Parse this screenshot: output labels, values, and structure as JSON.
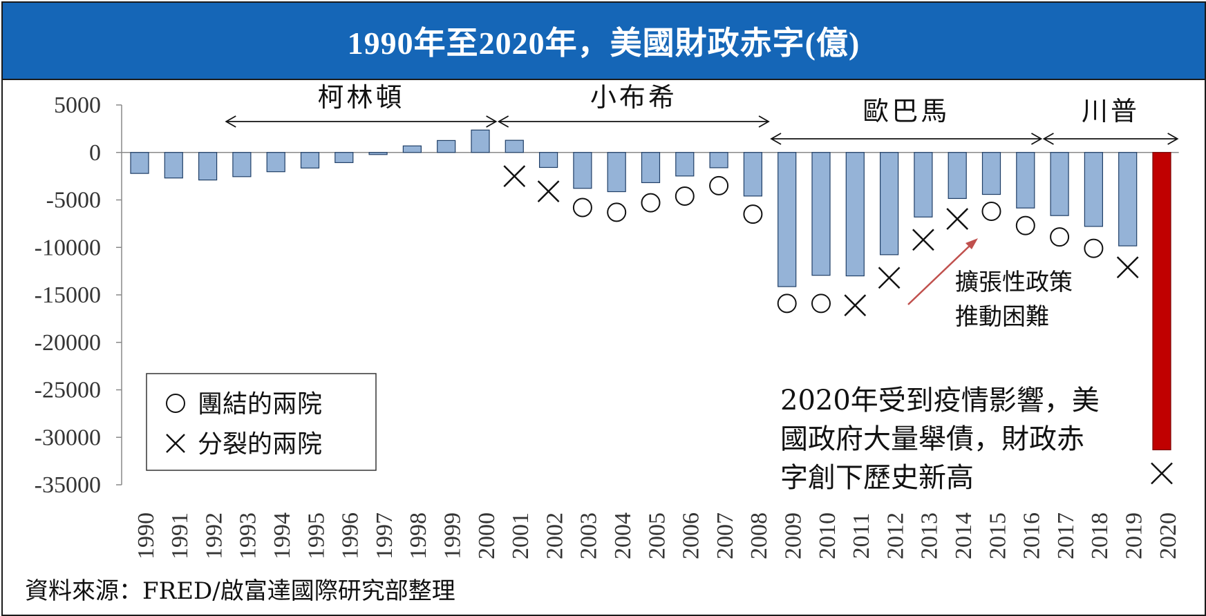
{
  "header": {
    "title": "1990年至2020年，美國財政赤字(億)"
  },
  "footer": {
    "source": "資料來源：FRED/啟富達國際研究部整理"
  },
  "colors": {
    "header_bg": "#1566b7",
    "bar_fill": "#95b3d7",
    "bar_edge": "#1f3e66",
    "highlight_bar": "#c00000",
    "arrow_red": "#c0504d"
  },
  "chart_data": {
    "type": "bar",
    "title": "1990年至2020年，美國財政赤字(億)",
    "xlabel": "",
    "ylabel": "",
    "ylim": [
      -35000,
      5000
    ],
    "yticks": [
      5000,
      0,
      -5000,
      -10000,
      -15000,
      -20000,
      -25000,
      -30000,
      -35000
    ],
    "ytick_labels": [
      "5000",
      "0",
      "-5000",
      "-10000",
      "-15000",
      "-20000",
      "-25000",
      "-30000",
      "-35000"
    ],
    "categories": [
      "1990",
      "1991",
      "1992",
      "1993",
      "1994",
      "1995",
      "1996",
      "1997",
      "1998",
      "1999",
      "2000",
      "2001",
      "2002",
      "2003",
      "2004",
      "2005",
      "2006",
      "2007",
      "2008",
      "2009",
      "2010",
      "2011",
      "2012",
      "2013",
      "2014",
      "2015",
      "2016",
      "2017",
      "2018",
      "2019",
      "2020"
    ],
    "values": [
      -2210,
      -2690,
      -2900,
      -2550,
      -2030,
      -1640,
      -1070,
      -220,
      690,
      1260,
      2360,
      1280,
      -1580,
      -3780,
      -4130,
      -3180,
      -2480,
      -1610,
      -4590,
      -14130,
      -12940,
      -13000,
      -10770,
      -6800,
      -4850,
      -4420,
      -5850,
      -6650,
      -7790,
      -9840,
      -31320
    ],
    "highlight_index": 30,
    "markers": [
      {
        "year": "2001",
        "type": "cross",
        "value": -2500
      },
      {
        "year": "2002",
        "type": "cross",
        "value": -4100
      },
      {
        "year": "2003",
        "type": "circle",
        "value": -5800
      },
      {
        "year": "2004",
        "type": "circle",
        "value": -6300
      },
      {
        "year": "2005",
        "type": "circle",
        "value": -5300
      },
      {
        "year": "2006",
        "type": "circle",
        "value": -4600
      },
      {
        "year": "2007",
        "type": "circle",
        "value": -3500
      },
      {
        "year": "2008",
        "type": "circle",
        "value": -6500
      },
      {
        "year": "2009",
        "type": "circle",
        "value": -15900
      },
      {
        "year": "2010",
        "type": "circle",
        "value": -15900
      },
      {
        "year": "2011",
        "type": "cross",
        "value": -16100
      },
      {
        "year": "2012",
        "type": "cross",
        "value": -13200
      },
      {
        "year": "2013",
        "type": "cross",
        "value": -9200
      },
      {
        "year": "2014",
        "type": "cross",
        "value": -7000
      },
      {
        "year": "2015",
        "type": "circle",
        "value": -6200
      },
      {
        "year": "2016",
        "type": "circle",
        "value": -7700
      },
      {
        "year": "2017",
        "type": "circle",
        "value": -8900
      },
      {
        "year": "2018",
        "type": "circle",
        "value": -10100
      },
      {
        "year": "2019",
        "type": "cross",
        "value": -12100
      },
      {
        "year": "2020",
        "type": "cross",
        "value": -33800
      }
    ],
    "presidents": [
      {
        "name": "柯林頓",
        "start": "1993",
        "end": "2000"
      },
      {
        "name": "小布希",
        "start": "2001",
        "end": "2008"
      },
      {
        "name": "歐巴馬",
        "start": "2009",
        "end": "2016"
      },
      {
        "name": "川普",
        "start": "2017",
        "end": "2020"
      }
    ],
    "legend": {
      "circle_label": "團結的兩院",
      "cross_label": "分裂的兩院",
      "position": "bottom-left"
    },
    "annotations": {
      "expansion_line1": "擴張性政策",
      "expansion_line2": "推動困難",
      "covid_line1": "2020年受到疫情影響，美",
      "covid_line2": "國政府大量舉債，財政赤",
      "covid_line3": "字創下歷史新高"
    },
    "grid": false,
    "legend_placement": "bottom-left"
  }
}
